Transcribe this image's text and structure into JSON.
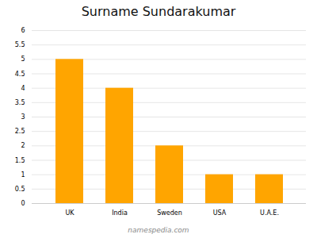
{
  "chart_data": {
    "type": "bar",
    "title": "Surname Sundarakumar",
    "categories": [
      "UK",
      "India",
      "Sweden",
      "USA",
      "U.A.E."
    ],
    "values": [
      5,
      4,
      2,
      1,
      1
    ],
    "color": "#FFA500",
    "ylim": [
      0,
      6
    ],
    "yticks": [
      0,
      0.5,
      1,
      1.5,
      2,
      2.5,
      3,
      3.5,
      4,
      4.5,
      5,
      5.5,
      6
    ],
    "grid": true,
    "annotations": [
      "namespedia.com"
    ]
  }
}
